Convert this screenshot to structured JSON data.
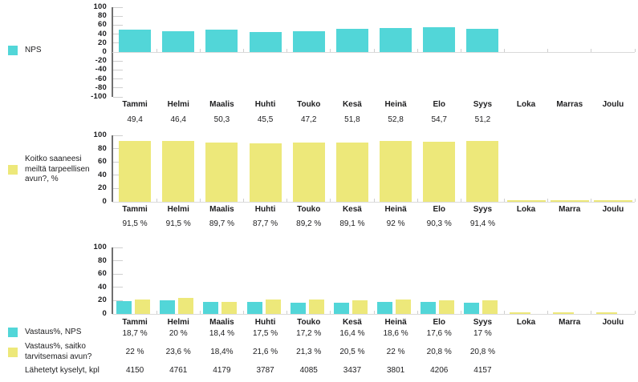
{
  "colors": {
    "cyan": "#52d6d8",
    "yellow": "#ede87a",
    "text": "#1d1d1f",
    "axis": "#6f6f6f",
    "tick": "#cfcfcf",
    "baseline": "#dadada"
  },
  "chart_data": [
    {
      "type": "bar",
      "legend": [
        {
          "label": "NPS",
          "swatch": "cyan"
        }
      ],
      "categories": [
        "Tammi",
        "Helmi",
        "Maalis",
        "Huhti",
        "Touko",
        "Kesä",
        "Heinä",
        "Elo",
        "Syys",
        "Loka",
        "Marras",
        "Joulu"
      ],
      "series": [
        {
          "name": "NPS",
          "swatch": "cyan",
          "values": [
            49.4,
            46.4,
            50.3,
            45.5,
            47.2,
            51.8,
            52.8,
            54.7,
            51.2,
            null,
            null,
            null
          ]
        }
      ],
      "value_rows": [
        [
          "49,4",
          "46,4",
          "50,3",
          "45,5",
          "47,2",
          "51,8",
          "52,8",
          "54,7",
          "51,2",
          "",
          "",
          ""
        ]
      ],
      "ylim": [
        -100,
        100
      ],
      "yticks": [
        100,
        80,
        60,
        40,
        20,
        0,
        -20,
        -40,
        -60,
        -80,
        -100
      ],
      "grid": false,
      "legend_position": "left"
    },
    {
      "type": "bar",
      "legend": [
        {
          "label": "Koitko saaneesi meiltä tarpeellisen avun?, %",
          "swatch": "yellow"
        }
      ],
      "categories": [
        "Tammi",
        "Helmi",
        "Maalis",
        "Huhti",
        "Touko",
        "Kesä",
        "Heinä",
        "Elo",
        "Syys",
        "Loka",
        "Marra",
        "Joulu"
      ],
      "series": [
        {
          "name": "Koitko saaneesi meiltä tarpeellisen avun?, %",
          "swatch": "yellow",
          "values": [
            91.5,
            91.5,
            89.7,
            87.7,
            89.2,
            89.1,
            92,
            90.3,
            91.4,
            null,
            null,
            null
          ],
          "zero_stub_months": [
            9,
            10,
            11
          ]
        }
      ],
      "value_rows": [
        [
          "91,5 %",
          "91,5 %",
          "89,7 %",
          "87,7 %",
          "89,2 %",
          "89,1 %",
          "92 %",
          "90,3 %",
          "91,4 %",
          "",
          "",
          ""
        ]
      ],
      "ylim": [
        0,
        100
      ],
      "yticks": [
        100,
        80,
        60,
        40,
        20,
        0
      ],
      "grid": false,
      "legend_position": "left"
    },
    {
      "type": "bar",
      "legend": [
        {
          "label": "Vastaus%, NPS",
          "swatch": "cyan"
        },
        {
          "label": "Vastaus%, saitko tarvitsemasi avun?",
          "swatch": "yellow"
        },
        {
          "label": "Lähetetyt kyselyt, kpl",
          "swatch": null
        }
      ],
      "categories": [
        "Tammi",
        "Helmi",
        "Maalis",
        "Huhti",
        "Touko",
        "Kesä",
        "Heinä",
        "Elo",
        "Syys",
        "Loka",
        "Marra",
        "Joulu"
      ],
      "series": [
        {
          "name": "Vastaus%, NPS",
          "swatch": "cyan",
          "values": [
            18.7,
            20,
            18.4,
            17.5,
            17.2,
            16.4,
            18.6,
            17.6,
            17,
            null,
            null,
            null
          ]
        },
        {
          "name": "Vastaus%, saitko tarvitsemasi avun?",
          "swatch": "yellow",
          "values": [
            22,
            23.6,
            18.4,
            21.6,
            21.3,
            20.5,
            22,
            20.8,
            20.8,
            null,
            null,
            null
          ],
          "zero_stub_months": [
            9,
            10,
            11
          ]
        }
      ],
      "counts": {
        "name": "Lähetetyt kyselyt, kpl",
        "values": [
          4150,
          4761,
          4179,
          3787,
          4085,
          3437,
          3801,
          4206,
          4157,
          null,
          null,
          null
        ]
      },
      "value_rows": [
        [
          "18,7 %",
          "20 %",
          "18,4 %",
          "17,5 %",
          "17,2 %",
          "16,4 %",
          "18,6 %",
          "17,6 %",
          "17 %",
          "",
          "",
          ""
        ],
        [
          "22 %",
          "23,6 %",
          "18,4%",
          "21,6 %",
          "21,3 %",
          "20,5 %",
          "22 %",
          "20,8 %",
          "20,8 %",
          "",
          "",
          ""
        ],
        [
          "4150",
          "4761",
          "4179",
          "3787",
          "4085",
          "3437",
          "3801",
          "4206",
          "4157",
          "",
          "",
          ""
        ]
      ],
      "ylim": [
        0,
        100
      ],
      "yticks": [
        100,
        80,
        60,
        40,
        20,
        0
      ],
      "grid": false,
      "legend_position": "left"
    }
  ]
}
